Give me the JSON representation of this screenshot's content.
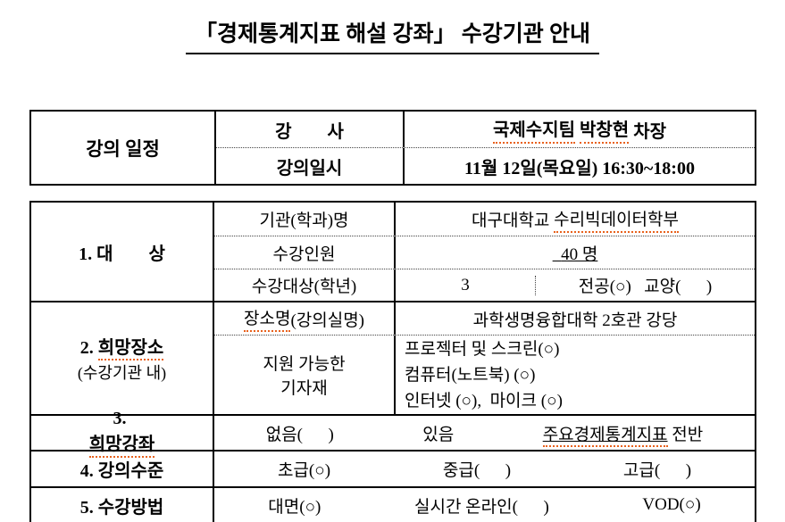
{
  "title": "「경제통계지표 해설 강좌」 수강기관 안내",
  "colors": {
    "spellcheck_underline": "#e8611c",
    "border": "#000000",
    "background": "#ffffff"
  },
  "schedule_table": {
    "header": "강의 일정",
    "instructor": {
      "label": "강        사",
      "team": "국제수지팀",
      "name": "박창현",
      "rank": " 차장"
    },
    "datetime": {
      "label": "강의일시",
      "value": "11월 12일(목요일) 16:30~18:00"
    }
  },
  "main_table": {
    "target": {
      "label": "1. 대        상",
      "org": {
        "label": "기관(학과)명",
        "prefix": "대구대학교 ",
        "spell": "수리빅데이터학부"
      },
      "capacity": {
        "label": "수강인원",
        "value": "  40 명"
      },
      "grade": {
        "label": "수강대상(학년)",
        "value": "3",
        "options": "전공(○)   교양(      )"
      }
    },
    "place": {
      "label_num": "2. ",
      "label_text": "희망장소",
      "label_sub": "(수강기관 내)",
      "room": {
        "label_spell": "장소명",
        "label_rest": "(강의실명)",
        "value": "과학생명융합대학 2호관 강당"
      },
      "equipment": {
        "label": "지원 가능한\n기자재",
        "lines": "프로젝터 및 스크린(○)\n컴퓨터(노트북) (○)\n인터넷 (○),  마이크 (○)"
      }
    },
    "course": {
      "label_num": "3. ",
      "label_text": "희망강좌",
      "none_option": "없음(      )",
      "yes_option": "있음",
      "topic": "주요경제통계지표",
      "topic_suffix": " 전반"
    },
    "level": {
      "label": "4. 강의수준",
      "options": [
        "초급(○)",
        "중급(      )",
        "고급(      )"
      ]
    },
    "method": {
      "label": "5. 수강방법",
      "options": [
        "대면(○)",
        "실시간 온라인(      )",
        "VOD(○)"
      ]
    }
  }
}
